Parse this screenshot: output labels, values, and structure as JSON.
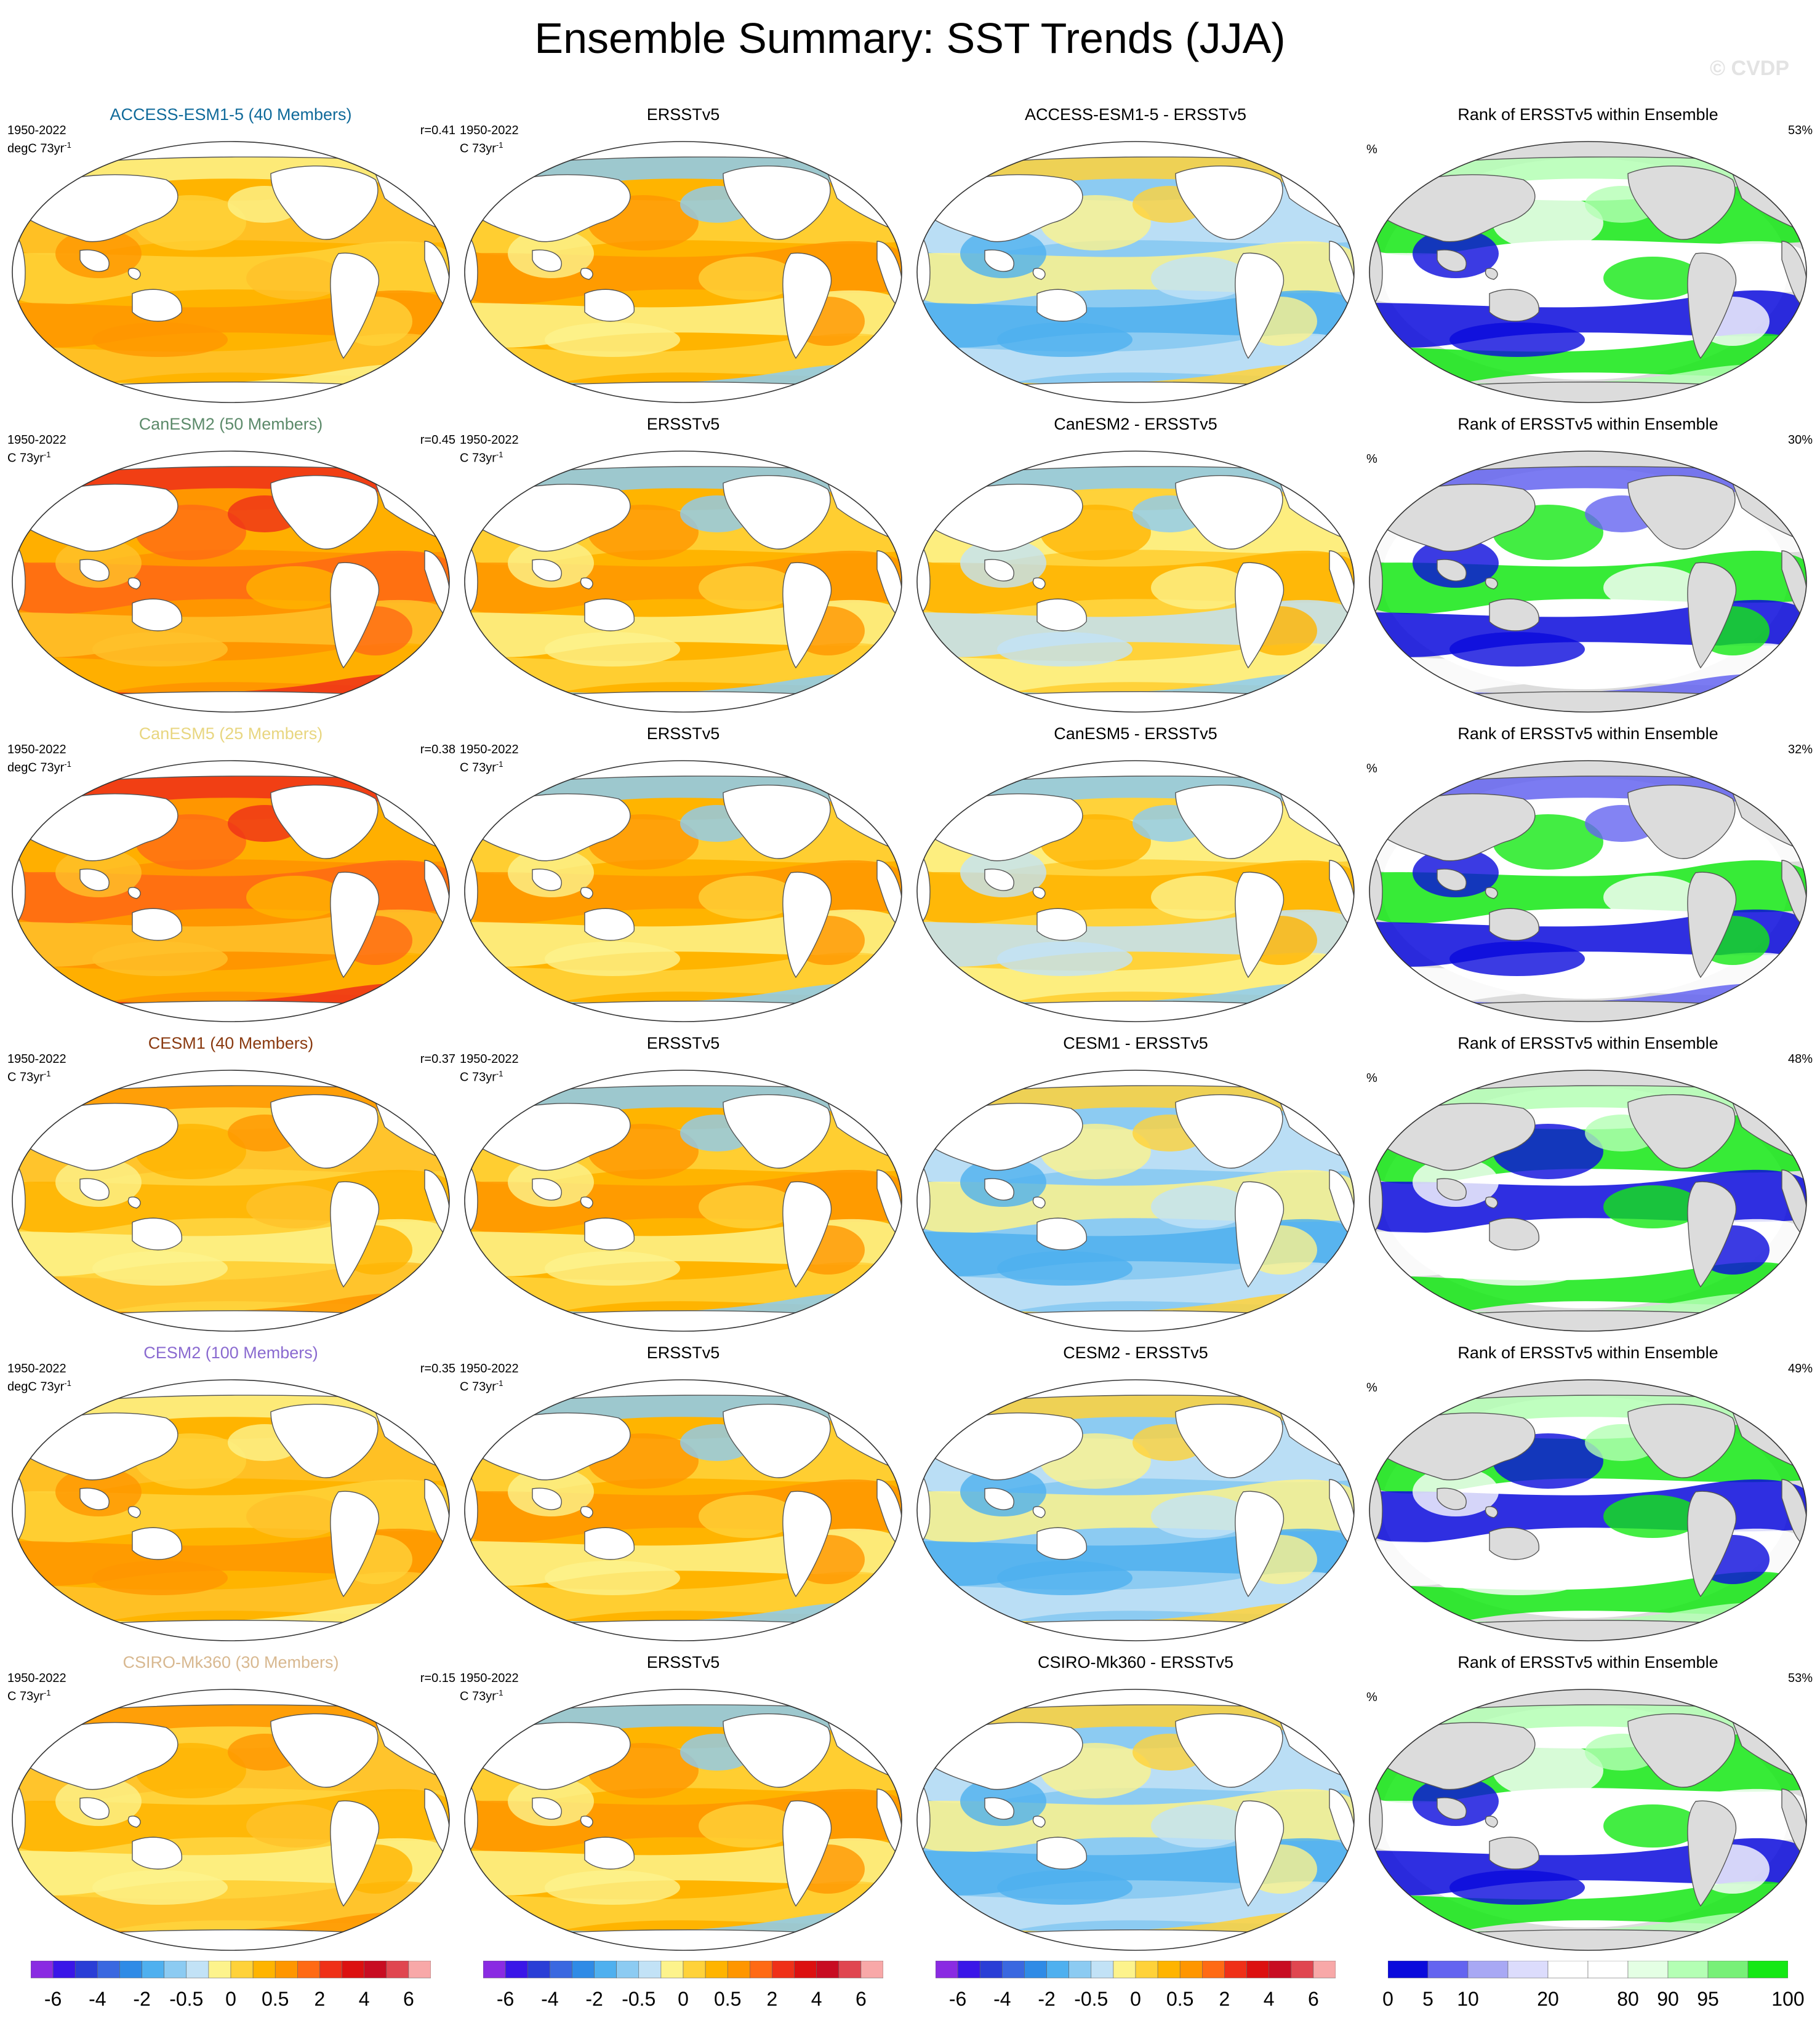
{
  "title": "Ensemble Summary: SST Trends (JJA)",
  "watermark": "© CVDP",
  "rows": [
    {
      "model_title": "ACCESS-ESM1-5 (40 Members)",
      "title_color": "#0f6a9a",
      "period": "1950-2022",
      "model_units": "degC 73yr",
      "obs_units": "C 73yr",
      "r": "r=0.41",
      "diff_title": "ACCESS-ESM1-5 - ERSSTv5",
      "rank_pct": "53%",
      "model_tone": "warm",
      "diff_tone": "cool",
      "rank_tone": "green"
    },
    {
      "model_title": "CanESM2 (50 Members)",
      "title_color": "#5c8a6a",
      "period": "1950-2022",
      "model_units": "C 73yr",
      "obs_units": "C 73yr",
      "r": "r=0.45",
      "diff_title": "CanESM2 - ERSSTv5",
      "rank_pct": "30%",
      "model_tone": "hot",
      "diff_tone": "mixed",
      "rank_tone": "blue"
    },
    {
      "model_title": "CanESM5 (25 Members)",
      "title_color": "#e8d680",
      "period": "1950-2022",
      "model_units": "degC 73yr",
      "obs_units": "C 73yr",
      "r": "r=0.38",
      "diff_title": "CanESM5 - ERSSTv5",
      "rank_pct": "32%",
      "model_tone": "hot",
      "diff_tone": "mixed",
      "rank_tone": "blue"
    },
    {
      "model_title": "CESM1 (40 Members)",
      "title_color": "#8a3a10",
      "period": "1950-2022",
      "model_units": "C 73yr",
      "obs_units": "C 73yr",
      "r": "r=0.37",
      "diff_title": "CESM1 - ERSSTv5",
      "rank_pct": "48%",
      "model_tone": "mild",
      "diff_tone": "cool",
      "rank_tone": "mixed"
    },
    {
      "model_title": "CESM2 (100 Members)",
      "title_color": "#8a6ad0",
      "period": "1950-2022",
      "model_units": "degC 73yr",
      "obs_units": "C 73yr",
      "r": "r=0.35",
      "diff_title": "CESM2 - ERSSTv5",
      "rank_pct": "49%",
      "model_tone": "warm",
      "diff_tone": "cool",
      "rank_tone": "mixed"
    },
    {
      "model_title": "CSIRO-Mk360 (30 Members)",
      "title_color": "#d8b890",
      "period": "1950-2022",
      "model_units": "C 73yr",
      "obs_units": "C 73yr",
      "r": "r=0.15",
      "diff_title": "CSIRO-Mk360 - ERSSTv5",
      "rank_pct": "53%",
      "model_tone": "mild",
      "diff_tone": "cool",
      "rank_tone": "green"
    }
  ],
  "obs_title": "ERSSTv5",
  "rank_title": "Rank of ERSSTv5 within Ensemble",
  "pct_symbol": "%",
  "unit_sup": "-1",
  "sst_colorbar": {
    "colors": [
      "#8a2be2",
      "#3a16e8",
      "#2a3ed6",
      "#3a68e0",
      "#2f8be6",
      "#4fb0ef",
      "#8ccbf2",
      "#c2e2f6",
      "#fdf38c",
      "#ffd23a",
      "#ffb400",
      "#ff9600",
      "#ff6a14",
      "#ef3018",
      "#dc1010",
      "#c80c22",
      "#e04650",
      "#f8a8a8"
    ],
    "labels": [
      "-6",
      "-4",
      "-2",
      "-0.5",
      "0",
      "0.5",
      "2",
      "4",
      "6"
    ],
    "label_edges": [
      1,
      3,
      5,
      7,
      9,
      11,
      13,
      15,
      17
    ]
  },
  "rank_colorbar": {
    "colors": [
      "#0a0adc",
      "#6464f0",
      "#a8a8f4",
      "#dcdcfc",
      "#ffffff",
      "#ffffff",
      "#e4ffe4",
      "#b4ffb4",
      "#78f078",
      "#14e814"
    ],
    "labels": [
      "0",
      "5",
      "10",
      "20",
      "80",
      "90",
      "95",
      "100"
    ],
    "label_edges": [
      0,
      1,
      2,
      4,
      6,
      7,
      8,
      10
    ]
  }
}
